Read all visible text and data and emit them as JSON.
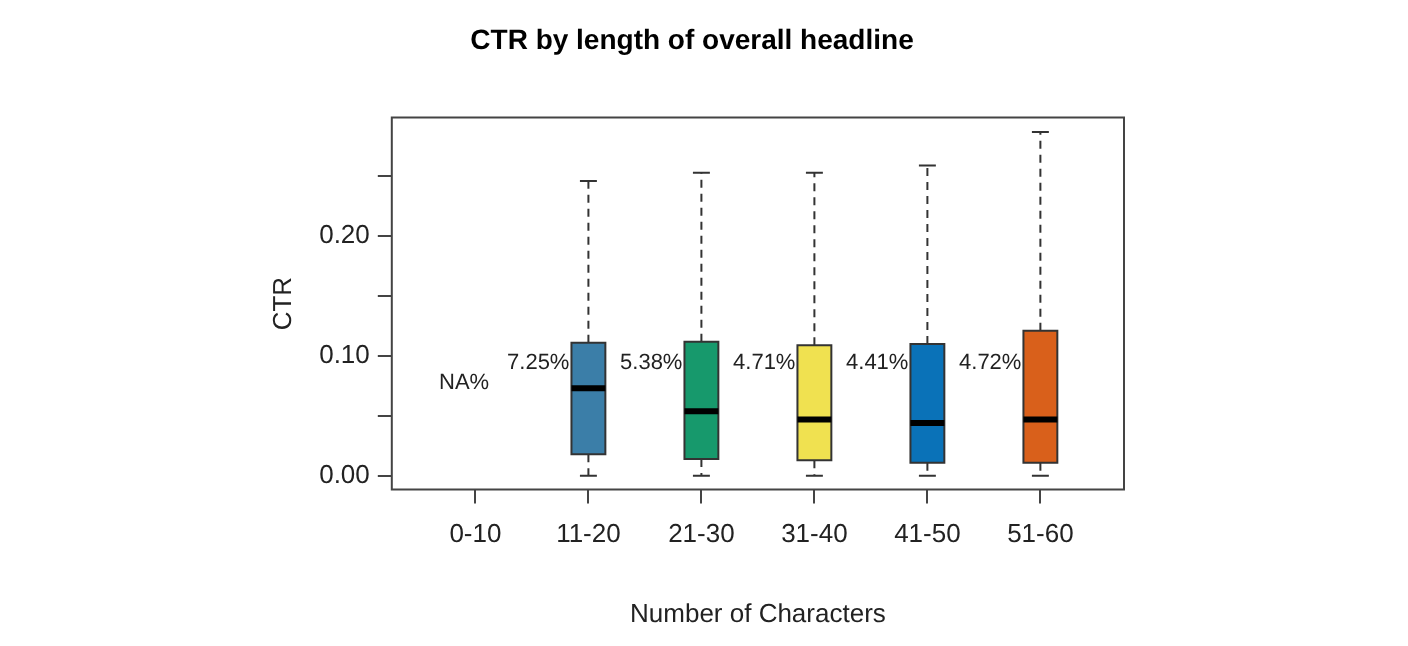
{
  "chart_data": {
    "type": "box",
    "title": "CTR by length of overall headline",
    "xlabel": "Number of Characters",
    "ylabel": "CTR",
    "categories": [
      "0-10",
      "11-20",
      "21-30",
      "31-40",
      "41-50",
      "51-60"
    ],
    "boxes": [
      null,
      {
        "low": 0,
        "q1": 0.018,
        "median": 0.073,
        "q3": 0.111,
        "high": 0.246
      },
      {
        "low": 0,
        "q1": 0.014,
        "median": 0.054,
        "q3": 0.112,
        "high": 0.253
      },
      {
        "low": 0,
        "q1": 0.013,
        "median": 0.047,
        "q3": 0.109,
        "high": 0.253
      },
      {
        "low": 0,
        "q1": 0.011,
        "median": 0.044,
        "q3": 0.11,
        "high": 0.259
      },
      {
        "low": 0,
        "q1": 0.011,
        "median": 0.047,
        "q3": 0.121,
        "high": 0.287
      }
    ],
    "colors": [
      null,
      "#3b7ea8",
      "#17996c",
      "#f0e150",
      "#0a72b8",
      "#d9601b"
    ],
    "ylim": [
      -0.0115,
      0.299
    ],
    "yticks": [
      {
        "value": 0,
        "label": "0.00"
      },
      {
        "value": 0.05,
        "label": null
      },
      {
        "value": 0.1,
        "label": "0.10"
      },
      {
        "value": 0.15,
        "label": null
      },
      {
        "value": 0.2,
        "label": "0.20"
      },
      {
        "value": 0.25,
        "label": null
      }
    ],
    "annotations": [
      "NA%",
      "7.25%",
      "5.38%",
      "4.71%",
      "4.41%",
      "4.72%"
    ],
    "grid": false,
    "legend": false
  }
}
